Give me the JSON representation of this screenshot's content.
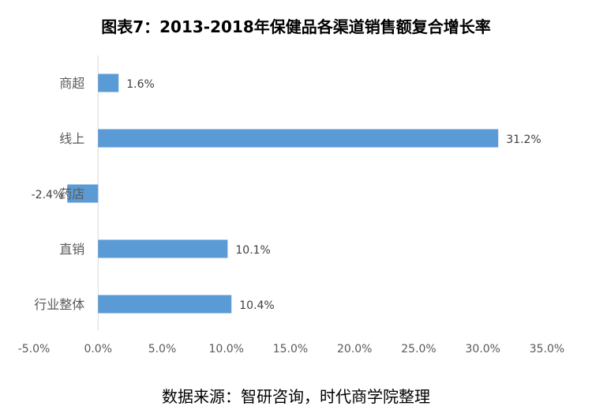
{
  "title": "图表7：2013-2018年保健品各渠道销售额复合增长率",
  "footer": "数据来源：智研咨询，时代商学院整理",
  "chart_data": {
    "type": "bar",
    "orientation": "horizontal",
    "categories": [
      "商超",
      "线上",
      "药店",
      "直销",
      "行业整体"
    ],
    "values": [
      1.6,
      31.2,
      -2.4,
      10.1,
      10.4
    ],
    "data_labels": [
      "1.6%",
      "31.2%",
      "-2.4%",
      "10.1%",
      "10.4%"
    ],
    "xlim": [
      -5,
      35
    ],
    "x_ticks": [
      "-5.0%",
      "0.0%",
      "5.0%",
      "10.0%",
      "15.0%",
      "20.0%",
      "25.0%",
      "30.0%",
      "35.0%"
    ],
    "x_tick_values": [
      -5,
      0,
      5,
      10,
      15,
      20,
      25,
      30,
      35
    ],
    "bar_color": "#5b9bd5",
    "grid": false,
    "legend": "none"
  }
}
